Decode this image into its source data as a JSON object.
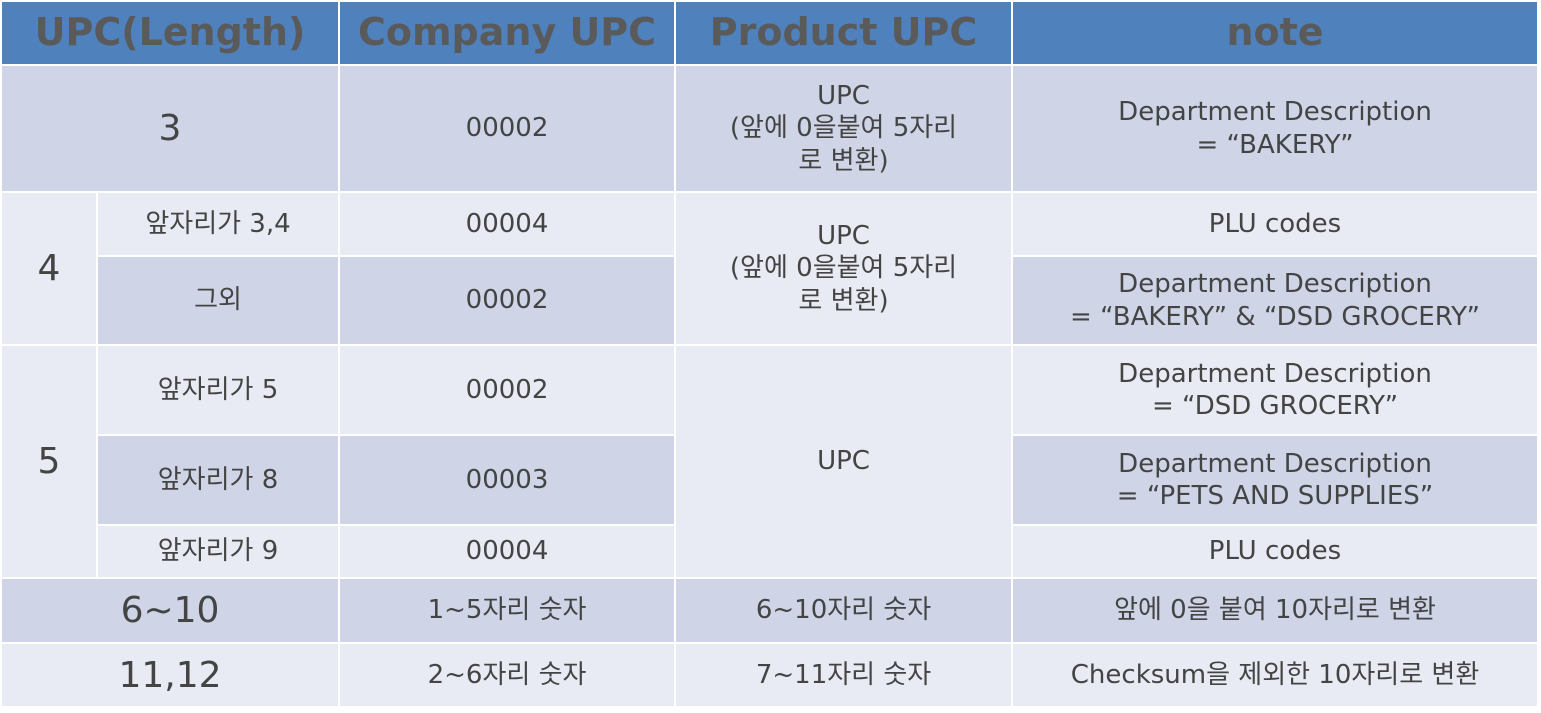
{
  "table": {
    "headers": [
      "UPC(Length)",
      "Company UPC",
      "Product UPC",
      "note"
    ],
    "rows": {
      "r3": {
        "length": "3",
        "company": "00002",
        "product": "UPC\n(앞에 0을붙여 5자리\n로 변환)",
        "note": "Department Description\n= “BAKERY”"
      },
      "r4": {
        "length": "4",
        "product": "UPC\n(앞에 0을붙여 5자리\n로 변환)",
        "sub": [
          {
            "cond": "앞자리가  3,4",
            "company": "00004",
            "note": "PLU codes"
          },
          {
            "cond": "그외",
            "company": "00002",
            "note": "Department Description\n= “BAKERY” & “DSD GROCERY”"
          }
        ]
      },
      "r5": {
        "length": "5",
        "product": "UPC",
        "sub": [
          {
            "cond": "앞자리가 5",
            "company": "00002",
            "note": "Department Description\n= “DSD GROCERY”"
          },
          {
            "cond": "앞자리가 8",
            "company": "00003",
            "note": "Department Description\n= “PETS AND SUPPLIES”"
          },
          {
            "cond": "앞자리가 9",
            "company": "00004",
            "note": "PLU codes"
          }
        ]
      },
      "r6": {
        "length": "6~10",
        "company": "1~5자리 숫자",
        "product": "6~10자리 숫자",
        "note": "앞에 0을 붙여 10자리로 변환"
      },
      "r11": {
        "length": "11,12",
        "company": "2~6자리 숫자",
        "product": "7~11자리 숫자",
        "note": "Checksum을 제외한 10자리로 변환"
      }
    }
  },
  "colors": {
    "header": "#4f81bd",
    "dark_row": "#cfd5e6",
    "light_row": "#e8ebf3",
    "text": "#444444"
  }
}
